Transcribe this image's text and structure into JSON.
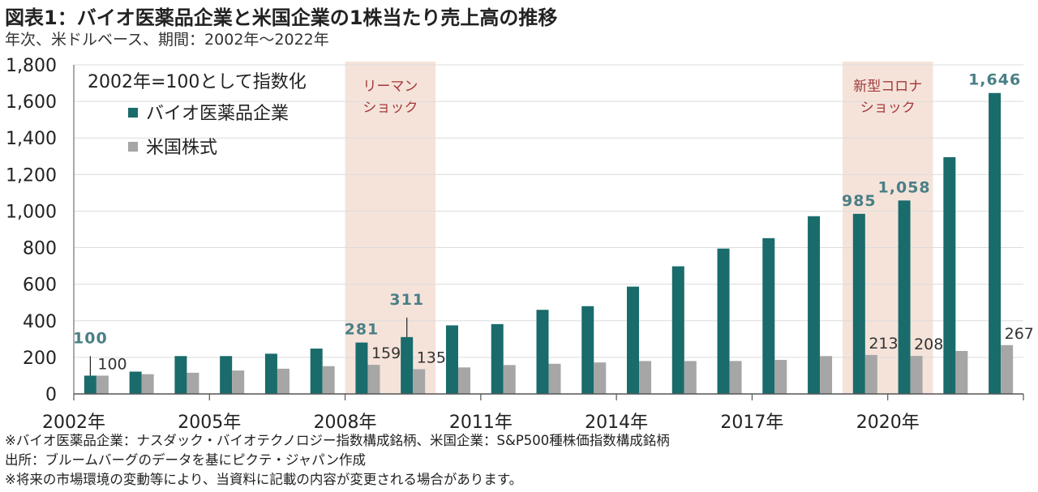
{
  "title": "図表1：バイオ医薬品企業と米国企業の1株当たり売上高の推移",
  "subtitle": "年次、米ドルベース、期間：2002年～2022年",
  "notes": [
    "※バイオ医薬品企業：ナスダック・バイオテクノロジー指数構成銘柄、米国企業：S&P500種株価指数構成銘柄",
    "出所：ブルームバーグのデータを基にピクテ・ジャパン作成",
    "※将来の市場環境の変動等により、当資料に記載の内容が変更される場合があります。"
  ],
  "colors": {
    "bio": "#1a6b6b",
    "us": "#a6a6a6",
    "shade": "#f5e3da",
    "shade_text": "#a33a3a",
    "label_bio": "#4a7f86"
  },
  "chart_data": {
    "type": "bar",
    "index_note": "2002年=100として指数化",
    "categories": [
      "2002",
      "2003",
      "2004",
      "2005",
      "2006",
      "2007",
      "2008",
      "2009",
      "2010",
      "2011",
      "2012",
      "2013",
      "2014",
      "2015",
      "2016",
      "2017",
      "2018",
      "2019",
      "2020",
      "2021",
      "2022"
    ],
    "x_tick_labels": [
      {
        "category": "2002",
        "label": "2002年"
      },
      {
        "category": "2005",
        "label": "2005年"
      },
      {
        "category": "2008",
        "label": "2008年"
      },
      {
        "category": "2011",
        "label": "2011年"
      },
      {
        "category": "2014",
        "label": "2014年"
      },
      {
        "category": "2017",
        "label": "2017年"
      },
      {
        "category": "2020",
        "label": "2020年"
      }
    ],
    "series": [
      {
        "name": "バイオ医薬品企業",
        "color": "#1a6b6b",
        "values": [
          100,
          122,
          207,
          207,
          220,
          248,
          281,
          311,
          375,
          382,
          460,
          480,
          587,
          698,
          795,
          852,
          972,
          985,
          1058,
          1295,
          1646
        ]
      },
      {
        "name": "米国株式",
        "color": "#a6a6a6",
        "values": [
          100,
          108,
          116,
          128,
          138,
          152,
          159,
          135,
          145,
          158,
          165,
          172,
          180,
          180,
          180,
          186,
          207,
          213,
          208,
          235,
          267
        ]
      }
    ],
    "data_labels": [
      {
        "series": 0,
        "category": "2002",
        "text": "100",
        "leader": true
      },
      {
        "series": 1,
        "category": "2002",
        "text": "100"
      },
      {
        "series": 0,
        "category": "2008",
        "text": "281"
      },
      {
        "series": 1,
        "category": "2008",
        "text": "159"
      },
      {
        "series": 0,
        "category": "2009",
        "text": "311",
        "leader": true
      },
      {
        "series": 1,
        "category": "2009",
        "text": "135"
      },
      {
        "series": 0,
        "category": "2019",
        "text": "985"
      },
      {
        "series": 1,
        "category": "2019",
        "text": "213"
      },
      {
        "series": 0,
        "category": "2020",
        "text": "1,058"
      },
      {
        "series": 1,
        "category": "2020",
        "text": "208"
      },
      {
        "series": 0,
        "category": "2022",
        "text": "1,646"
      },
      {
        "series": 1,
        "category": "2022",
        "text": "267"
      }
    ],
    "y_ticks": [
      0,
      200,
      400,
      600,
      800,
      1000,
      1200,
      1400,
      1600,
      1800
    ],
    "y_tick_labels": [
      "0",
      "200",
      "400",
      "600",
      "800",
      "1,000",
      "1,200",
      "1,400",
      "1,600",
      "1,800"
    ],
    "ylim": [
      0,
      1800
    ],
    "grid": true,
    "legend_position": "top-left",
    "shaded_periods": [
      {
        "categories": [
          "2008",
          "2009"
        ],
        "label": [
          "リーマン",
          "ショック"
        ]
      },
      {
        "categories": [
          "2019",
          "2020"
        ],
        "label": [
          "新型コロナ",
          "ショック"
        ]
      }
    ]
  }
}
